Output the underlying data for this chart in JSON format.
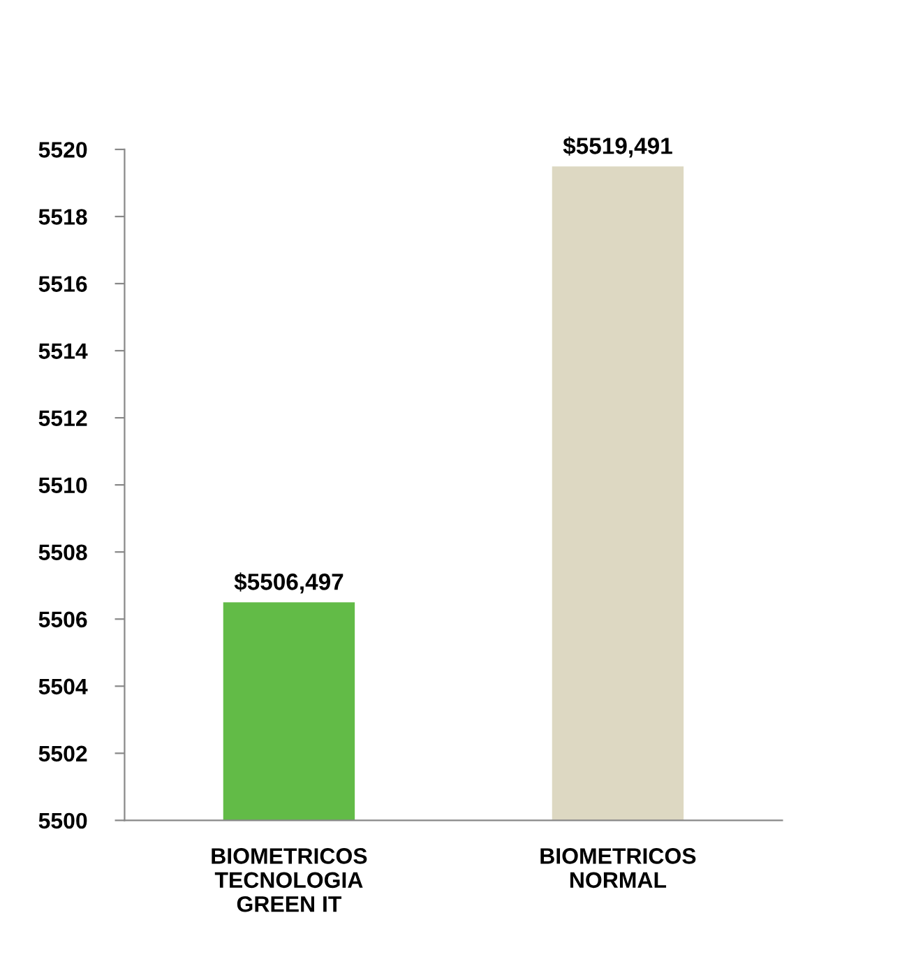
{
  "chart_data": {
    "type": "bar",
    "categories": [
      "BIOMETRICOS\nTECNOLOGIA\nGREEN IT",
      "BIOMETRICOS\nNORMAL"
    ],
    "values": [
      5506.497,
      5519.491
    ],
    "colors": [
      "#62bb47",
      "#ddd8c2"
    ],
    "value_labels": [
      "$5506,497",
      "$5519,491"
    ],
    "ylim": [
      5500,
      5520
    ],
    "yticks": [
      5500,
      5502,
      5504,
      5506,
      5508,
      5510,
      5512,
      5514,
      5516,
      5518,
      5520
    ]
  }
}
